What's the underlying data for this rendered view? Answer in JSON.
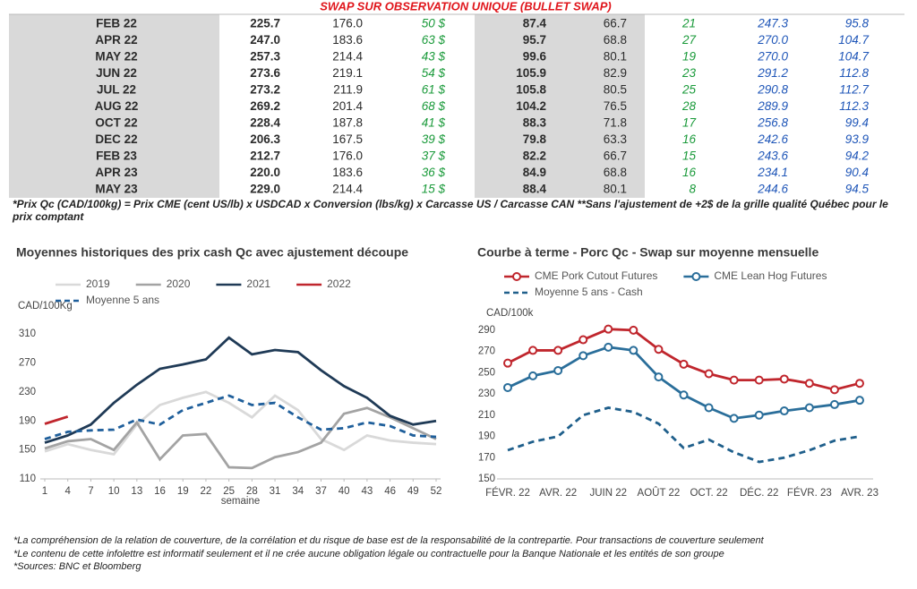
{
  "header": {
    "title": "SWAP SUR OBSERVATION UNIQUE (BULLET SWAP)"
  },
  "table": {
    "rows": [
      [
        "FEB 22",
        "225.7",
        "176.0",
        "50 $",
        "87.4",
        "66.7",
        "21",
        "247.3",
        "95.8"
      ],
      [
        "APR 22",
        "247.0",
        "183.6",
        "63 $",
        "95.7",
        "68.8",
        "27",
        "270.0",
        "104.7"
      ],
      [
        "MAY 22",
        "257.3",
        "214.4",
        "43 $",
        "99.6",
        "80.1",
        "19",
        "270.0",
        "104.7"
      ],
      [
        "JUN 22",
        "273.6",
        "219.1",
        "54 $",
        "105.9",
        "82.9",
        "23",
        "291.2",
        "112.8"
      ],
      [
        "JUL 22",
        "273.2",
        "211.9",
        "61 $",
        "105.8",
        "80.5",
        "25",
        "290.8",
        "112.7"
      ],
      [
        "AUG 22",
        "269.2",
        "201.4",
        "68 $",
        "104.2",
        "76.5",
        "28",
        "289.9",
        "112.3"
      ],
      [
        "OCT 22",
        "228.4",
        "187.8",
        "41 $",
        "88.3",
        "71.8",
        "17",
        "256.8",
        "99.4"
      ],
      [
        "DEC 22",
        "206.3",
        "167.5",
        "39 $",
        "79.8",
        "63.3",
        "16",
        "242.6",
        "93.9"
      ],
      [
        "FEB 23",
        "212.7",
        "176.0",
        "37 $",
        "82.2",
        "66.7",
        "15",
        "243.6",
        "94.2"
      ],
      [
        "APR 23",
        "220.0",
        "183.6",
        "36 $",
        "84.9",
        "68.8",
        "16",
        "234.1",
        "90.4"
      ],
      [
        "MAY 23",
        "229.0",
        "214.4",
        "15 $",
        "88.4",
        "80.1",
        "8",
        "244.6",
        "94.5"
      ]
    ]
  },
  "footnote": "*Prix Qc (CAD/100kg) = Prix CME (cent US/lb) x USDCAD x Conversion (lbs/kg) x Carcasse US / Carcasse CAN **Sans l'ajustement de +2$ de la grille qualité Québec pour le prix comptant",
  "chart_data": [
    {
      "type": "line",
      "title": "Moyennes historiques des prix cash Qc avec ajustement découpe",
      "ylabel": "CAD/100Kg",
      "xlabel": "semaine",
      "x": [
        1,
        4,
        7,
        10,
        13,
        16,
        19,
        22,
        25,
        28,
        31,
        34,
        37,
        40,
        43,
        46,
        49,
        52
      ],
      "xlim": [
        1,
        52
      ],
      "xticks": [
        1,
        4,
        7,
        10,
        13,
        16,
        19,
        22,
        25,
        28,
        31,
        34,
        37,
        40,
        43,
        46,
        49,
        52
      ],
      "ylim": [
        110,
        330
      ],
      "yticks": [
        110,
        150,
        190,
        230,
        270,
        310
      ],
      "grid": false,
      "legend": "top",
      "series": [
        {
          "name": "2019",
          "color": "#d9d9d9",
          "values": [
            148,
            158,
            150,
            144,
            185,
            212,
            222,
            230,
            215,
            195,
            225,
            205,
            165,
            150,
            170,
            163,
            160,
            158
          ]
        },
        {
          "name": "2020",
          "color": "#a3a3a3",
          "values": [
            152,
            162,
            165,
            150,
            188,
            137,
            170,
            172,
            126,
            125,
            140,
            147,
            160,
            200,
            208,
            195,
            180,
            165
          ]
        },
        {
          "name": "2021",
          "color": "#1f3a56",
          "values": [
            160,
            170,
            185,
            215,
            240,
            262,
            268,
            275,
            305,
            282,
            288,
            285,
            260,
            238,
            222,
            197,
            185,
            190
          ]
        },
        {
          "name": "2022",
          "color": "#c0262d",
          "values": [
            186,
            196,
            null,
            null,
            null,
            null,
            null,
            null,
            null,
            null,
            null,
            null,
            null,
            null,
            null,
            null,
            null,
            null
          ]
        },
        {
          "name": "Moyenne 5 ans",
          "color": "#1f5f9b",
          "dashed": true,
          "values": [
            165,
            175,
            177,
            178,
            192,
            185,
            205,
            215,
            225,
            212,
            215,
            195,
            178,
            180,
            188,
            183,
            170,
            168
          ]
        }
      ]
    },
    {
      "type": "line",
      "title": "Courbe à terme - Porc Qc - Swap sur moyenne mensuelle",
      "ylabel": "CAD/100k",
      "categories": [
        "FÉVR. 22",
        null,
        "AVR. 22",
        null,
        "JUIN 22",
        null,
        "AOÛT 22",
        null,
        "OCT. 22",
        null,
        "DÉC. 22",
        null,
        "FÉVR. 23",
        null,
        "AVR. 23"
      ],
      "ylim": [
        150,
        300
      ],
      "yticks": [
        150,
        170,
        190,
        210,
        230,
        250,
        270,
        290
      ],
      "grid": false,
      "legend": "top",
      "series": [
        {
          "name": "CME Pork Cutout Futures",
          "color": "#c0262d",
          "marker": "circle",
          "values": [
            259,
            271,
            271,
            281,
            291,
            290,
            272,
            258,
            249,
            243,
            243,
            244,
            240,
            234,
            240
          ]
        },
        {
          "name": "CME Lean Hog Futures",
          "color": "#2a6e9a",
          "marker": "circle",
          "values": [
            236,
            247,
            252,
            266,
            274,
            271,
            246,
            229,
            217,
            207,
            210,
            214,
            217,
            220,
            224
          ]
        },
        {
          "name": "Moyenne 5 ans - Cash",
          "color": "#1f5f8b",
          "dashed": true,
          "values": [
            177,
            185,
            190,
            210,
            217,
            213,
            202,
            179,
            187,
            175,
            166,
            170,
            177,
            186,
            190
          ]
        }
      ]
    }
  ],
  "notes": [
    "*La compréhension de la relation de couverture, de la corrélation et du risque de base est de la responsabilité de la contrepartie. Pour transactions de couverture seulement",
    "*Le contenu de cette infolettre est informatif seulement et il ne crée aucune obligation légale ou contractuelle pour la Banque Nationale et les entités de son groupe",
    "*Sources: BNC et Bloomberg"
  ]
}
